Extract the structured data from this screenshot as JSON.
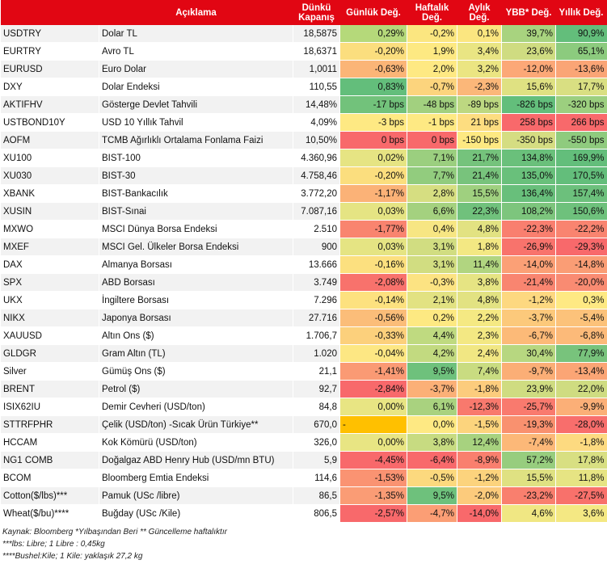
{
  "header": {
    "code": "",
    "desc": "Açıklama",
    "close": "Dünkü Kapanış",
    "daily": "Günlük Değ.",
    "weekly": "Haftalık Değ.",
    "monthly": "Aylık Değ.",
    "ytd": "YBB* Değ.",
    "yearly": "Yıllık Değ."
  },
  "rows": [
    {
      "code": "USDTRY",
      "desc": "Dolar TL",
      "close": "18,5875",
      "d": "0,29%",
      "w": "-0,2%",
      "m": "0,1%",
      "y": "39,7%",
      "a": "90,9%",
      "c": [
        "#b5d97a",
        "#fbe680",
        "#fbe680",
        "#a8d37f",
        "#63be7b"
      ]
    },
    {
      "code": "EURTRY",
      "desc": "Avro TL",
      "close": "18,6371",
      "d": "-0,20%",
      "w": "1,9%",
      "m": "3,4%",
      "y": "23,6%",
      "a": "65,1%",
      "c": [
        "#fbde7e",
        "#fde982",
        "#e9e583",
        "#cfdc81",
        "#8ccb7e"
      ]
    },
    {
      "code": "EURUSD",
      "desc": "Euro Dolar",
      "close": "1,0011",
      "d": "-0,63%",
      "w": "2,0%",
      "m": "3,2%",
      "y": "-12,0%",
      "a": "-13,6%",
      "c": [
        "#fbb577",
        "#fee983",
        "#ebe582",
        "#fca877",
        "#faa576"
      ]
    },
    {
      "code": "DXY",
      "desc": "Dolar Endeksi",
      "close": "110,55",
      "d": "0,83%",
      "w": "-0,7%",
      "m": "-2,3%",
      "y": "15,6%",
      "a": "17,7%",
      "c": [
        "#63be7b",
        "#fcd47d",
        "#fbb779",
        "#dfe182",
        "#d9df82"
      ]
    },
    {
      "code": "AKTIFHV",
      "desc": "Gösterge Devlet Tahvili",
      "close": "14,48%",
      "d": "-17 bps",
      "w": "-48 bps",
      "m": "-89 bps",
      "y": "-826 bps",
      "a": "-320 bps",
      "c": [
        "#72c27b",
        "#a2d07f",
        "#bdd881",
        "#63be7b",
        "#9ccf7f"
      ]
    },
    {
      "code": "USTBOND10Y",
      "desc": "USD 10 Yıllık Tahvil",
      "close": "4,09%",
      "d": "-3 bps",
      "w": "-1 bps",
      "m": "21 bps",
      "y": "258 bps",
      "a": "266 bps",
      "c": [
        "#fee983",
        "#fee983",
        "#fddd80",
        "#f8696b",
        "#f8696b"
      ]
    },
    {
      "code": "AOFM",
      "desc": "TCMB Ağırlıklı Ortalama Fonlama Faizi",
      "close": "10,50%",
      "d": "0 bps",
      "w": "0 bps",
      "m": "-150 bps",
      "y": "-350 bps",
      "a": "-550 bps",
      "c": [
        "#f8696b",
        "#f8696b",
        "#fde982",
        "#d5dd82",
        "#8fcb7e"
      ]
    },
    {
      "code": "XU100",
      "desc": "BIST-100",
      "close": "4.360,96",
      "d": "0,02%",
      "w": "7,1%",
      "m": "21,7%",
      "y": "134,8%",
      "a": "169,9%",
      "c": [
        "#e6e483",
        "#9bcf7f",
        "#75c37c",
        "#6ac07b",
        "#63be7b"
      ]
    },
    {
      "code": "XU030",
      "desc": "BIST-30",
      "close": "4.758,46",
      "d": "-0,20%",
      "w": "7,7%",
      "m": "21,4%",
      "y": "135,0%",
      "a": "170,5%",
      "c": [
        "#fbde7e",
        "#92cc7e",
        "#78c37c",
        "#69c07b",
        "#63be7b"
      ]
    },
    {
      "code": "XBANK",
      "desc": "BIST-Bankacılık",
      "close": "3.772,20",
      "d": "-1,17%",
      "w": "2,8%",
      "m": "15,5%",
      "y": "136,4%",
      "a": "157,4%",
      "c": [
        "#fbb277",
        "#d6de81",
        "#9fd07f",
        "#68bf7b",
        "#6cc07c"
      ]
    },
    {
      "code": "XUSIN",
      "desc": "BIST-Sınai",
      "close": "7.087,16",
      "d": "0,03%",
      "w": "6,6%",
      "m": "22,3%",
      "y": "108,2%",
      "a": "150,6%",
      "c": [
        "#e5e483",
        "#a4d17f",
        "#70c17c",
        "#7dc57d",
        "#6ec17c"
      ]
    },
    {
      "code": "MXWO",
      "desc": "MSCI Dünya Borsa Endeksi",
      "close": "2.510",
      "d": "-1,77%",
      "w": "0,4%",
      "m": "4,8%",
      "y": "-22,3%",
      "a": "-22,2%",
      "c": [
        "#f9846f",
        "#f7e683",
        "#e2e282",
        "#f97f6f",
        "#f98470"
      ]
    },
    {
      "code": "MXEF",
      "desc": "MSCI Gel. Ülkeler Borsa Endeksi",
      "close": "900",
      "d": "0,03%",
      "w": "3,1%",
      "m": "1,8%",
      "y": "-26,9%",
      "a": "-29,3%",
      "c": [
        "#e5e483",
        "#d1dd81",
        "#f3e883",
        "#f8736c",
        "#f8696b"
      ]
    },
    {
      "code": "DAX",
      "desc": "Almanya Borsası",
      "close": "13.666",
      "d": "-0,16%",
      "w": "3,1%",
      "m": "11,4%",
      "y": "-14,0%",
      "a": "-14,8%",
      "c": [
        "#fce07f",
        "#d1dd81",
        "#b1d580",
        "#fba076",
        "#fa9d75"
      ]
    },
    {
      "code": "SPX",
      "desc": "ABD Borsası",
      "close": "3.749",
      "d": "-2,08%",
      "w": "-0,3%",
      "m": "3,8%",
      "y": "-21,4%",
      "a": "-20,0%",
      "c": [
        "#f8726c",
        "#fce382",
        "#e6e483",
        "#f98570",
        "#f98b72"
      ]
    },
    {
      "code": "UKX",
      "desc": "İngiltere Borsası",
      "close": "7.296",
      "d": "-0,14%",
      "w": "2,1%",
      "m": "4,8%",
      "y": "-1,2%",
      "a": "0,3%",
      "c": [
        "#fde17f",
        "#e2e282",
        "#e2e282",
        "#fdd880",
        "#fee983"
      ]
    },
    {
      "code": "NIKX",
      "desc": "Japonya Borsası",
      "close": "27.716",
      "d": "-0,56%",
      "w": "0,2%",
      "m": "2,2%",
      "y": "-3,7%",
      "a": "-5,4%",
      "c": [
        "#fbbd79",
        "#fde982",
        "#f5e983",
        "#fcc97b",
        "#fcc27a"
      ]
    },
    {
      "code": "XAUUSD",
      "desc": "Altın Ons ($)",
      "close": "1.706,7",
      "d": "-0,33%",
      "w": "4,4%",
      "m": "2,3%",
      "y": "-6,7%",
      "a": "-6,8%",
      "c": [
        "#fcd07c",
        "#bfda80",
        "#f3e883",
        "#fcba78",
        "#fcba79"
      ]
    },
    {
      "code": "GLDGR",
      "desc": "Gram Altın (TL)",
      "close": "1.020",
      "d": "-0,04%",
      "w": "4,2%",
      "m": "2,4%",
      "y": "30,4%",
      "a": "77,9%",
      "c": [
        "#fde783",
        "#c2da80",
        "#f1e783",
        "#b7d780",
        "#78c37c"
      ]
    },
    {
      "code": "Silver",
      "desc": "Gümüş Ons ($)",
      "close": "21,1",
      "d": "-1,41%",
      "w": "9,5%",
      "m": "7,4%",
      "y": "-9,7%",
      "a": "-13,4%",
      "c": [
        "#fa9a74",
        "#6ec17c",
        "#c9dc81",
        "#fbae76",
        "#fba575"
      ]
    },
    {
      "code": "BRENT",
      "desc": "Petrol ($)",
      "close": "92,7",
      "d": "-2,84%",
      "w": "-3,7%",
      "m": "-1,8%",
      "y": "23,9%",
      "a": "22,0%",
      "c": [
        "#f8696b",
        "#fbb077",
        "#fccc7d",
        "#cfdc81",
        "#cfdc81"
      ]
    },
    {
      "code": "ISIX62IU",
      "desc": "Demir Cevheri (USD/ton)",
      "close": "84,8",
      "d": "0,00%",
      "w": "6,1%",
      "m": "-12,3%",
      "y": "-25,7%",
      "a": "-9,9%",
      "c": [
        "#e8e583",
        "#a9d27f",
        "#f8796d",
        "#f97a6e",
        "#fbaf77"
      ]
    },
    {
      "code": "STTRFPHR",
      "desc": "Çelik (USD/ton) -Sıcak Ürün Türkiye**",
      "close": "670,0",
      "d": "-",
      "w": "0,0%",
      "m": "-1,5%",
      "y": "-19,3%",
      "a": "-28,0%",
      "c": [
        "#ffc000",
        "#fee983",
        "#fcd47d",
        "#f9916f",
        "#f86e6c"
      ]
    },
    {
      "code": "HCCAM",
      "desc": "Kok Kömürü (USD/ton)",
      "close": "326,0",
      "d": "0,00%",
      "w": "3,8%",
      "m": "12,4%",
      "y": "-7,4%",
      "a": "-1,8%",
      "c": [
        "#e8e583",
        "#c7db81",
        "#a7d27f",
        "#fcb878",
        "#fdda80"
      ]
    },
    {
      "code": "NG1 COMB",
      "desc": "Doğalgaz ABD Henry Hub (USD/mn BTU)",
      "close": "5,9",
      "d": "-4,45%",
      "w": "-6,4%",
      "m": "-8,9%",
      "y": "57,2%",
      "a": "17,8%",
      "c": [
        "#f8696b",
        "#f8696b",
        "#f97f6e",
        "#97cd7e",
        "#d8df82"
      ]
    },
    {
      "code": "BCOM",
      "desc": "Bloomberg Emtia Endeksi",
      "close": "114,6",
      "d": "-1,53%",
      "w": "-0,5%",
      "m": "-1,2%",
      "y": "15,5%",
      "a": "11,8%",
      "c": [
        "#fa9372",
        "#fcd97e",
        "#fcd37d",
        "#dfe182",
        "#e6e483"
      ]
    },
    {
      "code": "Cotton($/lbs)***",
      "desc": "Pamuk (USc /libre)",
      "close": "86,5",
      "d": "-1,35%",
      "w": "9,5%",
      "m": "-2,0%",
      "y": "-23,2%",
      "a": "-27,5%",
      "c": [
        "#fa9c75",
        "#6ec17c",
        "#fccb7c",
        "#f97f6e",
        "#f8716b"
      ]
    },
    {
      "code": "Wheat($/bu)****",
      "desc": "Buğday (USc /Kile)",
      "close": "806,5",
      "d": "-2,57%",
      "w": "-4,7%",
      "m": "-14,0%",
      "y": "4,6%",
      "a": "3,6%",
      "c": [
        "#f8696b",
        "#fb9e75",
        "#f8696b",
        "#f0e783",
        "#f4e883"
      ]
    }
  ],
  "notes": [
    "Kaynak: Bloomberg *Yılbaşından Beri  ** Güncelleme haftalıktır",
    "***lbs: Libre; 1 Libre : 0,45kg",
    "****Bushel:Kile; 1 Kile: yaklaşık 27,2 kg"
  ]
}
